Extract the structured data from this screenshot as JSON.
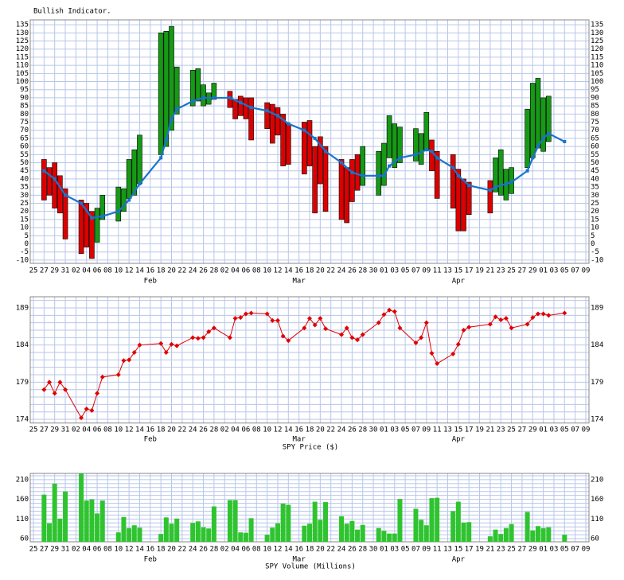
{
  "chart_data": [
    {
      "type": "range-bar",
      "title": "Bullish Indicator.",
      "xlim": [
        0,
        104
      ],
      "xticks": [
        {
          "value": 0,
          "label": "25"
        },
        {
          "value": 2,
          "label": "27"
        },
        {
          "value": 4,
          "label": "29"
        },
        {
          "value": 6,
          "label": "31"
        },
        {
          "value": 8,
          "label": "02"
        },
        {
          "value": 10,
          "label": "04"
        },
        {
          "value": 12,
          "label": "06"
        },
        {
          "value": 14,
          "label": "08"
        },
        {
          "value": 16,
          "label": "10"
        },
        {
          "value": 18,
          "label": "12"
        },
        {
          "value": 20,
          "label": "14"
        },
        {
          "value": 22,
          "label": "16"
        },
        {
          "value": 24,
          "label": "18"
        },
        {
          "value": 26,
          "label": "20"
        },
        {
          "value": 28,
          "label": "22"
        },
        {
          "value": 30,
          "label": "24"
        },
        {
          "value": 32,
          "label": "26"
        },
        {
          "value": 34,
          "label": "28"
        },
        {
          "value": 36,
          "label": "02"
        },
        {
          "value": 38,
          "label": "04"
        },
        {
          "value": 40,
          "label": "06"
        },
        {
          "value": 42,
          "label": "08"
        },
        {
          "value": 44,
          "label": "10"
        },
        {
          "value": 46,
          "label": "12"
        },
        {
          "value": 48,
          "label": "14"
        },
        {
          "value": 50,
          "label": "16"
        },
        {
          "value": 52,
          "label": "18"
        },
        {
          "value": 54,
          "label": "20"
        },
        {
          "value": 56,
          "label": "22"
        },
        {
          "value": 58,
          "label": "24"
        },
        {
          "value": 60,
          "label": "26"
        },
        {
          "value": 62,
          "label": "28"
        },
        {
          "value": 64,
          "label": "30"
        },
        {
          "value": 66,
          "label": "01"
        },
        {
          "value": 68,
          "label": "03"
        },
        {
          "value": 70,
          "label": "05"
        },
        {
          "value": 72,
          "label": "07"
        },
        {
          "value": 74,
          "label": "09"
        },
        {
          "value": 76,
          "label": "11"
        },
        {
          "value": 78,
          "label": "13"
        },
        {
          "value": 80,
          "label": "15"
        },
        {
          "value": 82,
          "label": "17"
        },
        {
          "value": 84,
          "label": "19"
        },
        {
          "value": 86,
          "label": "21"
        },
        {
          "value": 88,
          "label": "23"
        },
        {
          "value": 90,
          "label": "25"
        },
        {
          "value": 92,
          "label": "27"
        },
        {
          "value": 94,
          "label": "29"
        },
        {
          "value": 96,
          "label": "01"
        },
        {
          "value": 98,
          "label": "03"
        },
        {
          "value": 100,
          "label": "05"
        },
        {
          "value": 102,
          "label": "07"
        },
        {
          "value": 104,
          "label": "09"
        }
      ],
      "month_labels": [
        {
          "value": 22,
          "label": "Feb"
        },
        {
          "value": 50,
          "label": "Mar"
        },
        {
          "value": 80,
          "label": "Apr"
        }
      ],
      "ylim": [
        -12,
        138
      ],
      "yticks": [
        -10,
        -5,
        0,
        5,
        10,
        15,
        20,
        25,
        30,
        35,
        40,
        45,
        50,
        55,
        60,
        65,
        70,
        75,
        80,
        85,
        90,
        95,
        100,
        105,
        110,
        115,
        120,
        125,
        130,
        135
      ],
      "bars": {
        "up_color": "#159a15",
        "down_color": "#dd0000",
        "x": [
          2,
          3,
          4,
          5,
          6,
          9,
          10,
          11,
          12,
          13,
          16,
          17,
          18,
          19,
          20,
          24,
          25,
          26,
          27,
          30,
          31,
          32,
          33,
          34,
          37,
          38,
          39,
          40,
          41,
          44,
          45,
          46,
          47,
          48,
          51,
          52,
          53,
          54,
          55,
          58,
          59,
          60,
          61,
          62,
          65,
          66,
          67,
          68,
          69,
          72,
          73,
          74,
          75,
          76,
          79,
          80,
          81,
          82,
          86,
          87,
          88,
          89,
          90,
          93,
          94,
          95,
          96,
          97
        ],
        "open": [
          52,
          47,
          50,
          42,
          34,
          27,
          25,
          20,
          1,
          15,
          14,
          20,
          28,
          30,
          37,
          55,
          60,
          70,
          80,
          85,
          88,
          85,
          86,
          89,
          94,
          89,
          91,
          90,
          90,
          87,
          86,
          84,
          80,
          74,
          75,
          76,
          60,
          66,
          60,
          52,
          47,
          52,
          55,
          36,
          30,
          36,
          53,
          47,
          50,
          51,
          49,
          58,
          64,
          57,
          55,
          46,
          40,
          38,
          39,
          32,
          30,
          27,
          31,
          47,
          53,
          59,
          57,
          63
        ],
        "close": [
          27,
          30,
          22,
          19,
          3,
          -6,
          -2,
          -9,
          22,
          30,
          35,
          34,
          52,
          58,
          67,
          130,
          131,
          134,
          109,
          107,
          108,
          98,
          93,
          99,
          84,
          77,
          79,
          77,
          64,
          71,
          62,
          67,
          48,
          49,
          43,
          48,
          19,
          37,
          20,
          15,
          13,
          26,
          33,
          60,
          57,
          62,
          79,
          74,
          72,
          71,
          68,
          81,
          45,
          28,
          22,
          8,
          8,
          18,
          19,
          53,
          58,
          46,
          47,
          83,
          99,
          102,
          90,
          91
        ]
      },
      "line": {
        "color": "#1874cd",
        "x": [
          2,
          4,
          6,
          9,
          11,
          13,
          16,
          18,
          20,
          24,
          25,
          26,
          27,
          30,
          32,
          34,
          37,
          39,
          41,
          44,
          46,
          48,
          51,
          53,
          55,
          58,
          60,
          62,
          65,
          66,
          67,
          69,
          72,
          74,
          75,
          76,
          79,
          80,
          82,
          86,
          87,
          89,
          90,
          93,
          94,
          95,
          96,
          97,
          100
        ],
        "values": [
          45,
          40,
          30,
          25,
          16,
          17,
          20,
          27,
          37,
          53,
          64,
          77,
          83,
          88,
          90,
          90,
          90,
          87,
          84,
          82,
          79,
          74,
          70,
          65,
          57,
          50,
          44,
          42,
          42,
          42,
          48,
          53,
          55,
          58,
          57,
          53,
          47,
          42,
          36,
          33,
          35,
          37,
          38,
          45,
          53,
          60,
          65,
          68,
          63
        ]
      }
    },
    {
      "type": "line",
      "title": "SPY Price ($)",
      "color": "#e00000",
      "xlim": [
        0,
        104
      ],
      "ylim": [
        173.5,
        190.5
      ],
      "yticks": [
        174,
        179,
        184,
        189
      ],
      "ygrid": [
        174,
        175,
        176,
        177,
        178,
        179,
        180,
        181,
        182,
        183,
        184,
        185,
        186,
        187,
        188,
        189,
        190
      ],
      "x": [
        2,
        3,
        4,
        5,
        6,
        9,
        10,
        11,
        12,
        13,
        16,
        17,
        18,
        19,
        20,
        24,
        25,
        26,
        27,
        30,
        31,
        32,
        33,
        34,
        37,
        38,
        39,
        40,
        41,
        44,
        45,
        46,
        47,
        48,
        51,
        52,
        53,
        54,
        55,
        58,
        59,
        60,
        61,
        62,
        65,
        66,
        67,
        68,
        69,
        72,
        73,
        74,
        75,
        76,
        79,
        80,
        81,
        82,
        86,
        87,
        88,
        89,
        90,
        93,
        94,
        95,
        96,
        97,
        100
      ],
      "values": [
        178,
        179,
        177.5,
        179,
        178,
        174.2,
        175.4,
        175.2,
        177.5,
        179.7,
        180,
        181.9,
        182,
        183,
        184,
        184.2,
        183,
        184.1,
        183.9,
        185,
        184.9,
        185,
        185.8,
        186.3,
        185,
        187.6,
        187.7,
        188.2,
        188.3,
        188.2,
        187.3,
        187.3,
        185.2,
        184.6,
        186.3,
        187.6,
        186.7,
        187.6,
        186.2,
        185.4,
        186.3,
        185,
        184.7,
        185.4,
        187,
        188.1,
        188.7,
        188.5,
        186.3,
        184.3,
        185,
        187,
        182.9,
        181.5,
        182.8,
        184.1,
        186,
        186.4,
        186.8,
        187.8,
        187.4,
        187.6,
        186.3,
        186.8,
        187.7,
        188.2,
        188.2,
        188,
        188.3
      ]
    },
    {
      "type": "bar",
      "title": "SPY Volume (Millions)",
      "color": "#2fc42f",
      "xlim": [
        0,
        104
      ],
      "ylim": [
        52,
        226
      ],
      "yticks": [
        60,
        110,
        160,
        210
      ],
      "ygrid": [
        60,
        70,
        80,
        90,
        100,
        110,
        120,
        130,
        140,
        150,
        160,
        170,
        180,
        190,
        200,
        210,
        220
      ],
      "x": [
        2,
        3,
        4,
        5,
        6,
        9,
        10,
        11,
        12,
        13,
        16,
        17,
        18,
        19,
        20,
        24,
        25,
        26,
        27,
        30,
        31,
        32,
        33,
        34,
        37,
        38,
        39,
        40,
        41,
        44,
        45,
        46,
        47,
        48,
        51,
        52,
        53,
        54,
        55,
        58,
        59,
        60,
        61,
        62,
        65,
        66,
        67,
        68,
        69,
        72,
        73,
        74,
        75,
        76,
        79,
        80,
        81,
        82,
        86,
        87,
        88,
        89,
        90,
        93,
        94,
        95,
        96,
        97,
        100
      ],
      "values": [
        172,
        99,
        200,
        111,
        180,
        225,
        157,
        160,
        124,
        157,
        76,
        115,
        87,
        94,
        88,
        72,
        114,
        98,
        111,
        100,
        104,
        89,
        86,
        142,
        158,
        158,
        76,
        75,
        112,
        70,
        88,
        99,
        149,
        146,
        93,
        98,
        154,
        108,
        153,
        117,
        98,
        105,
        83,
        95,
        87,
        80,
        73,
        73,
        161,
        136,
        108,
        94,
        163,
        164,
        130,
        154,
        101,
        102,
        66,
        83,
        72,
        87,
        97,
        128,
        81,
        92,
        87,
        89,
        70
      ]
    }
  ]
}
